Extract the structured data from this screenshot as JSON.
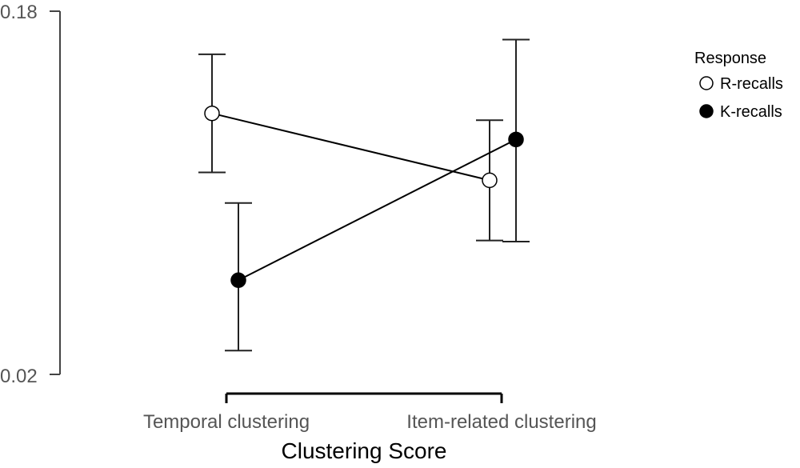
{
  "chart_data": {
    "type": "line",
    "xlabel": "Clustering Score",
    "ylabel": "",
    "categories": [
      "Temporal clustering",
      "Item-related clustering"
    ],
    "ylim": [
      0.02,
      0.18
    ],
    "yticks": [
      "0.02",
      "0.18"
    ],
    "legend": {
      "title": "Response",
      "position": "right"
    },
    "series": [
      {
        "name": "R-recalls",
        "marker": "open-circle",
        "color": "#ffffff",
        "values": [
          0.135,
          0.1055
        ],
        "error_low": [
          0.109,
          0.079
        ],
        "error_high": [
          0.161,
          0.132
        ]
      },
      {
        "name": "K-recalls",
        "marker": "filled-circle",
        "color": "#000000",
        "values": [
          0.0615,
          0.1235
        ],
        "error_low": [
          0.0305,
          0.0785
        ],
        "error_high": [
          0.0955,
          0.1675
        ]
      }
    ],
    "grid": false
  }
}
